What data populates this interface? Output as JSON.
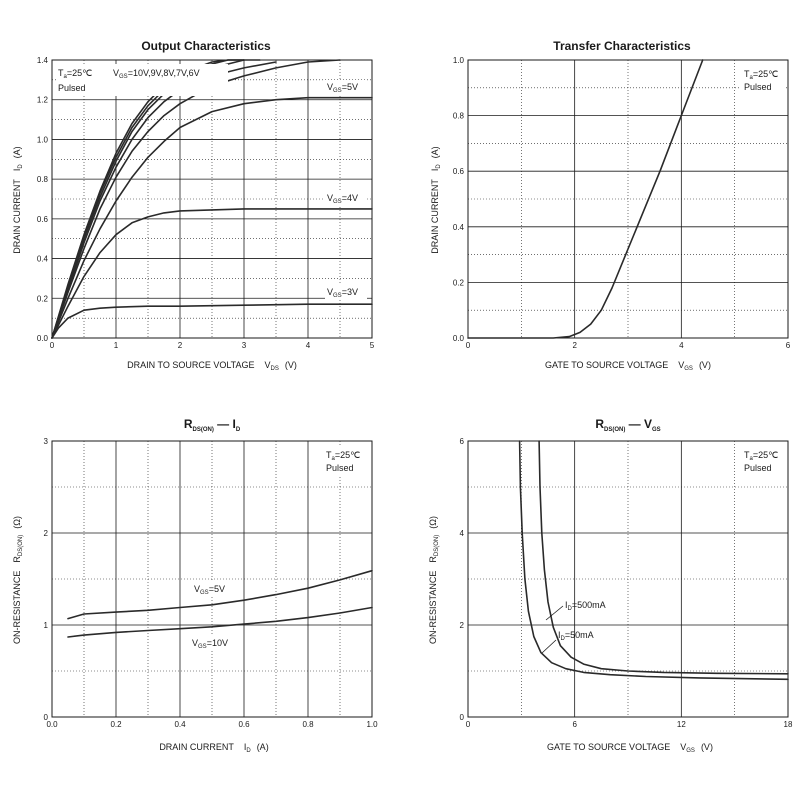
{
  "chart_data": [
    {
      "type": "line",
      "title": "Output Characteristics",
      "xlabel": {
        "text": "DRAIN TO SOURCE VOLTAGE",
        "symbol": "V",
        "sub": "DS",
        "unit": "(V)"
      },
      "ylabel": {
        "text": "DRAIN CURRENT",
        "symbol": "I",
        "sub": "D",
        "unit": "(A)"
      },
      "xlim": [
        0,
        5
      ],
      "ylim": [
        0,
        1.4
      ],
      "xticks": [
        "0",
        "1",
        "2",
        "3",
        "4",
        "5"
      ],
      "yticks": [
        "0.0",
        "0.2",
        "0.4",
        "0.6",
        "0.8",
        "1.0",
        "1.2",
        "1.4"
      ],
      "grid": true,
      "annotations": [
        {
          "t": "T",
          "s": "a",
          "r": "=25℃"
        },
        {
          "t": "V",
          "s": "GS",
          "r": "=10V,9V,8V,7V,6V"
        },
        {
          "t": "Pulsed",
          "s": "",
          "r": ""
        },
        {
          "t": "V",
          "s": "GS",
          "r": "=5V"
        },
        {
          "t": "V",
          "s": "GS",
          "r": "=4V"
        },
        {
          "t": "V",
          "s": "GS",
          "r": "=3V"
        }
      ],
      "series": [
        {
          "x": [
            0,
            0.25,
            0.5,
            0.75,
            1.0,
            1.25,
            1.5,
            1.75,
            2.0,
            2.25,
            2.5,
            2.75,
            3.0
          ],
          "values": [
            0,
            0.27,
            0.52,
            0.74,
            0.93,
            1.08,
            1.19,
            1.27,
            1.32,
            1.36,
            1.39,
            1.41,
            1.43
          ]
        },
        {
          "x": [
            0,
            0.25,
            0.5,
            0.75,
            1.0,
            1.25,
            1.5,
            1.75,
            2.0,
            2.25,
            2.5,
            2.75,
            3.0
          ],
          "values": [
            0,
            0.26,
            0.51,
            0.73,
            0.91,
            1.06,
            1.17,
            1.25,
            1.31,
            1.35,
            1.38,
            1.4,
            1.42
          ]
        },
        {
          "x": [
            0,
            0.25,
            0.5,
            0.75,
            1.0,
            1.25,
            1.5,
            1.75,
            2.0,
            2.25,
            2.5,
            2.75,
            3.0,
            3.25
          ],
          "values": [
            0,
            0.25,
            0.5,
            0.71,
            0.89,
            1.04,
            1.15,
            1.23,
            1.29,
            1.33,
            1.36,
            1.38,
            1.4,
            1.42
          ]
        },
        {
          "x": [
            0,
            0.25,
            0.5,
            0.75,
            1.0,
            1.25,
            1.5,
            1.75,
            2.0,
            2.5,
            3.0,
            3.5
          ],
          "values": [
            0,
            0.24,
            0.48,
            0.69,
            0.86,
            1.0,
            1.11,
            1.19,
            1.25,
            1.32,
            1.36,
            1.39
          ]
        },
        {
          "x": [
            0,
            0.25,
            0.5,
            0.75,
            1.0,
            1.25,
            1.5,
            1.75,
            2.0,
            2.5,
            3.0,
            3.5,
            4.0,
            4.5
          ],
          "values": [
            0,
            0.23,
            0.45,
            0.65,
            0.81,
            0.94,
            1.04,
            1.12,
            1.18,
            1.27,
            1.32,
            1.36,
            1.39,
            1.41
          ]
        },
        {
          "x": [
            0,
            0.25,
            0.5,
            0.75,
            1.0,
            1.25,
            1.5,
            1.75,
            2.0,
            2.5,
            3.0,
            3.5,
            4.0,
            4.5,
            5.0
          ],
          "values": [
            0,
            0.2,
            0.39,
            0.55,
            0.69,
            0.81,
            0.91,
            0.99,
            1.06,
            1.14,
            1.18,
            1.2,
            1.21,
            1.21,
            1.21
          ]
        },
        {
          "x": [
            0,
            0.25,
            0.5,
            0.75,
            1.0,
            1.25,
            1.5,
            1.75,
            2.0,
            2.5,
            3.0,
            3.5,
            4.0,
            4.5,
            5.0
          ],
          "values": [
            0,
            0.16,
            0.31,
            0.43,
            0.52,
            0.58,
            0.61,
            0.63,
            0.64,
            0.645,
            0.65,
            0.65,
            0.65,
            0.65,
            0.65
          ]
        },
        {
          "x": [
            0,
            0.1,
            0.25,
            0.5,
            0.75,
            1.0,
            1.5,
            2.0,
            3.0,
            4.0,
            5.0
          ],
          "values": [
            0,
            0.05,
            0.1,
            0.14,
            0.15,
            0.155,
            0.16,
            0.16,
            0.165,
            0.17,
            0.17
          ]
        }
      ]
    },
    {
      "type": "line",
      "title": "Transfer Characteristics",
      "xlabel": {
        "text": "GATE TO SOURCE VOLTAGE",
        "symbol": "V",
        "sub": "GS",
        "unit": "(V)"
      },
      "ylabel": {
        "text": "DRAIN CURRENT",
        "symbol": "I",
        "sub": "D",
        "unit": "(A)"
      },
      "xlim": [
        0,
        6
      ],
      "ylim": [
        0,
        1.0
      ],
      "xticks": [
        "0",
        "2",
        "4",
        "6"
      ],
      "yticks": [
        "0.0",
        "0.2",
        "0.4",
        "0.6",
        "0.8",
        "1.0"
      ],
      "grid": true,
      "annotations": [
        {
          "t": "T",
          "s": "a",
          "r": "=25℃"
        },
        {
          "t": "Pulsed",
          "s": "",
          "r": ""
        }
      ],
      "series": [
        {
          "x": [
            0,
            1.6,
            1.9,
            2.1,
            2.3,
            2.5,
            2.7,
            3.0,
            3.3,
            3.6,
            4.0,
            4.4
          ],
          "values": [
            0,
            0.0,
            0.005,
            0.02,
            0.05,
            0.1,
            0.18,
            0.32,
            0.46,
            0.6,
            0.8,
            1.0
          ]
        }
      ]
    },
    {
      "type": "line",
      "title": {
        "t": "R",
        "s": "DS(ON)",
        "r": " — I",
        "s2": "D"
      },
      "xlabel": {
        "text": "DRAIN CURRENT",
        "symbol": "I",
        "sub": "D",
        "unit": "(A)"
      },
      "ylabel": {
        "text": "ON-RESISTANCE",
        "symbol": "R",
        "sub": "DS(ON)",
        "unit": "(Ω)"
      },
      "xlim": [
        0,
        1.0
      ],
      "ylim": [
        0,
        3
      ],
      "xticks": [
        "0.0",
        "0.2",
        "0.4",
        "0.6",
        "0.8",
        "1.0"
      ],
      "yticks": [
        "0",
        "1",
        "2",
        "3"
      ],
      "grid": true,
      "annotations": [
        {
          "t": "T",
          "s": "a",
          "r": "=25℃"
        },
        {
          "t": "Pulsed",
          "s": "",
          "r": ""
        },
        {
          "t": "V",
          "s": "GS",
          "r": "=5V"
        },
        {
          "t": "V",
          "s": "GS",
          "r": "=10V"
        }
      ],
      "series": [
        {
          "x": [
            0.05,
            0.1,
            0.2,
            0.3,
            0.4,
            0.5,
            0.6,
            0.7,
            0.8,
            0.9,
            1.0
          ],
          "values": [
            1.07,
            1.12,
            1.14,
            1.16,
            1.19,
            1.22,
            1.27,
            1.33,
            1.4,
            1.49,
            1.59
          ]
        },
        {
          "x": [
            0.05,
            0.1,
            0.2,
            0.3,
            0.4,
            0.5,
            0.6,
            0.7,
            0.8,
            0.9,
            1.0
          ],
          "values": [
            0.87,
            0.89,
            0.92,
            0.94,
            0.96,
            0.98,
            1.01,
            1.04,
            1.08,
            1.13,
            1.19
          ]
        }
      ]
    },
    {
      "type": "line",
      "title": {
        "t": "R",
        "s": "DS(ON)",
        "r": " — V",
        "s2": "GS"
      },
      "xlabel": {
        "text": "GATE TO SOURCE VOLTAGE",
        "symbol": "V",
        "sub": "GS",
        "unit": "(V)"
      },
      "ylabel": {
        "text": "ON-RESISTANCE",
        "symbol": "R",
        "sub": "DS(ON)",
        "unit": "(Ω)"
      },
      "xlim": [
        0,
        18
      ],
      "ylim": [
        0,
        6
      ],
      "xticks": [
        "0",
        "6",
        "12",
        "18"
      ],
      "yticks": [
        "0",
        "2",
        "4",
        "6"
      ],
      "grid": true,
      "annotations": [
        {
          "t": "T",
          "s": "a",
          "r": "=25℃"
        },
        {
          "t": "Pulsed",
          "s": "",
          "r": ""
        },
        {
          "t": "I",
          "s": "D",
          "r": "=500mA"
        },
        {
          "t": "I",
          "s": "D",
          "r": "=50mA"
        }
      ],
      "series": [
        {
          "x": [
            4.0,
            4.05,
            4.15,
            4.3,
            4.5,
            4.8,
            5.2,
            5.8,
            6.5,
            7.5,
            9,
            11,
            14,
            18
          ],
          "values": [
            6.0,
            5.0,
            4.0,
            3.2,
            2.5,
            1.95,
            1.55,
            1.3,
            1.15,
            1.05,
            1.0,
            0.97,
            0.95,
            0.94
          ]
        },
        {
          "x": [
            2.9,
            2.95,
            3.05,
            3.2,
            3.4,
            3.7,
            4.1,
            4.7,
            5.5,
            6.5,
            8,
            10,
            13,
            18
          ],
          "values": [
            6.0,
            5.0,
            4.0,
            3.0,
            2.3,
            1.75,
            1.4,
            1.18,
            1.05,
            0.97,
            0.92,
            0.88,
            0.85,
            0.82
          ]
        }
      ]
    }
  ]
}
